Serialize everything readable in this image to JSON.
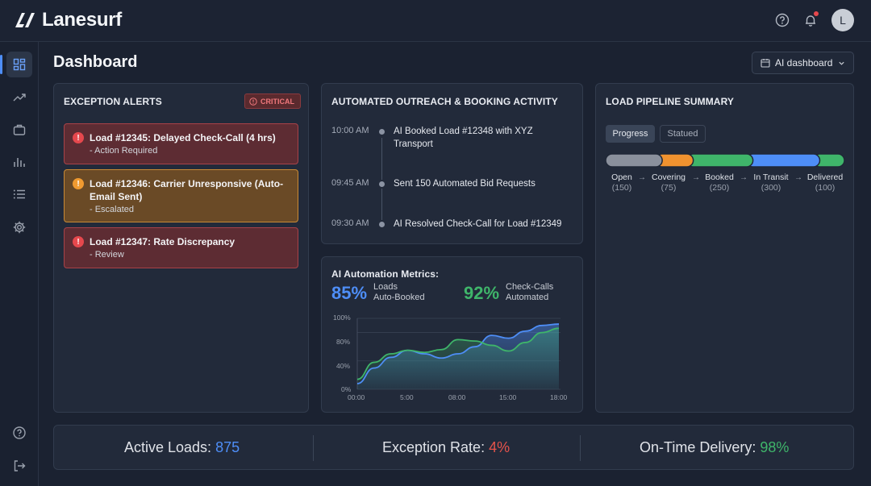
{
  "app": {
    "name": "Lanesurf",
    "user_initial": "L"
  },
  "page": {
    "title": "Dashboard",
    "view_select": "AI dashboard"
  },
  "exceptions": {
    "title": "EXCEPTION ALERTS",
    "badge": "CRITICAL",
    "alerts": [
      {
        "title": "Load #12345: Delayed Check-Call (4 hrs)",
        "sub": "- Action Required",
        "severity": "red"
      },
      {
        "title": "Load #12346: Carrier Unresponsive (Auto-Email Sent)",
        "sub": "- Escalated",
        "severity": "orange"
      },
      {
        "title": "Load #12347: Rate Discrepancy",
        "sub": "- Review",
        "severity": "red"
      }
    ]
  },
  "outreach": {
    "title": "AUTOMATED OUTREACH & BOOKING ACTIVITY",
    "events": [
      {
        "time": "10:00 AM",
        "text": "AI Booked Load #12348 with XYZ Transport"
      },
      {
        "time": "09:45 AM",
        "text": "Sent 150 Automated Bid Requests"
      },
      {
        "time": "09:30 AM",
        "text": "AI Resolved Check-Call for Load #12349"
      }
    ]
  },
  "metrics": {
    "title": "AI Automation Metrics:",
    "loads_pct": "85%",
    "loads_label_1": "Loads",
    "loads_label_2": "Auto-Booked",
    "calls_pct": "92%",
    "calls_label_1": "Check-Calls",
    "calls_label_2": "Automated",
    "colors": {
      "loads": "#4e8ef7",
      "calls": "#3fb56a"
    }
  },
  "chart_data": {
    "type": "area",
    "x_ticks": [
      "00:00",
      "5:00",
      "08:00",
      "15:00",
      "18:00"
    ],
    "y_ticks": [
      "100%",
      "80%",
      "40%",
      "0%"
    ],
    "ylim": [
      0,
      100
    ],
    "x": [
      0,
      1,
      2,
      3,
      4,
      5,
      6,
      7,
      8,
      9,
      10,
      11,
      12
    ],
    "series": [
      {
        "color": "#4e8ef7",
        "values": [
          8,
          30,
          45,
          55,
          50,
          44,
          50,
          60,
          76,
          72,
          82,
          90,
          92
        ]
      },
      {
        "color": "#3fb56a",
        "values": [
          14,
          38,
          50,
          55,
          52,
          56,
          70,
          68,
          62,
          54,
          66,
          80,
          86
        ]
      }
    ]
  },
  "pipeline": {
    "title": "LOAD PIPELINE SUMMARY",
    "tabs": [
      "Progress",
      "Statued"
    ],
    "stages": [
      {
        "name": "Open",
        "count": "(150)",
        "value": 150,
        "color": "#8a909c"
      },
      {
        "name": "Covering",
        "count": "(75)",
        "value": 75,
        "color": "#f0922f"
      },
      {
        "name": "Booked",
        "count": "(250)",
        "value": 250,
        "color": "#3fb56a"
      },
      {
        "name": "In Transit",
        "count": "(300)",
        "value": 300,
        "color": "#4e8ef7"
      },
      {
        "name": "Delivered",
        "count": "(100)",
        "value": 100,
        "color": "#3fb56a"
      }
    ]
  },
  "stats": {
    "active_label": "Active Loads:",
    "active_value": "875",
    "active_color": "#4e8ef7",
    "exception_label": "Exception Rate:",
    "exception_value": "4%",
    "exception_color": "#e5534b",
    "ontime_label": "On-Time Delivery:",
    "ontime_value": "98%",
    "ontime_color": "#3fb56a"
  }
}
